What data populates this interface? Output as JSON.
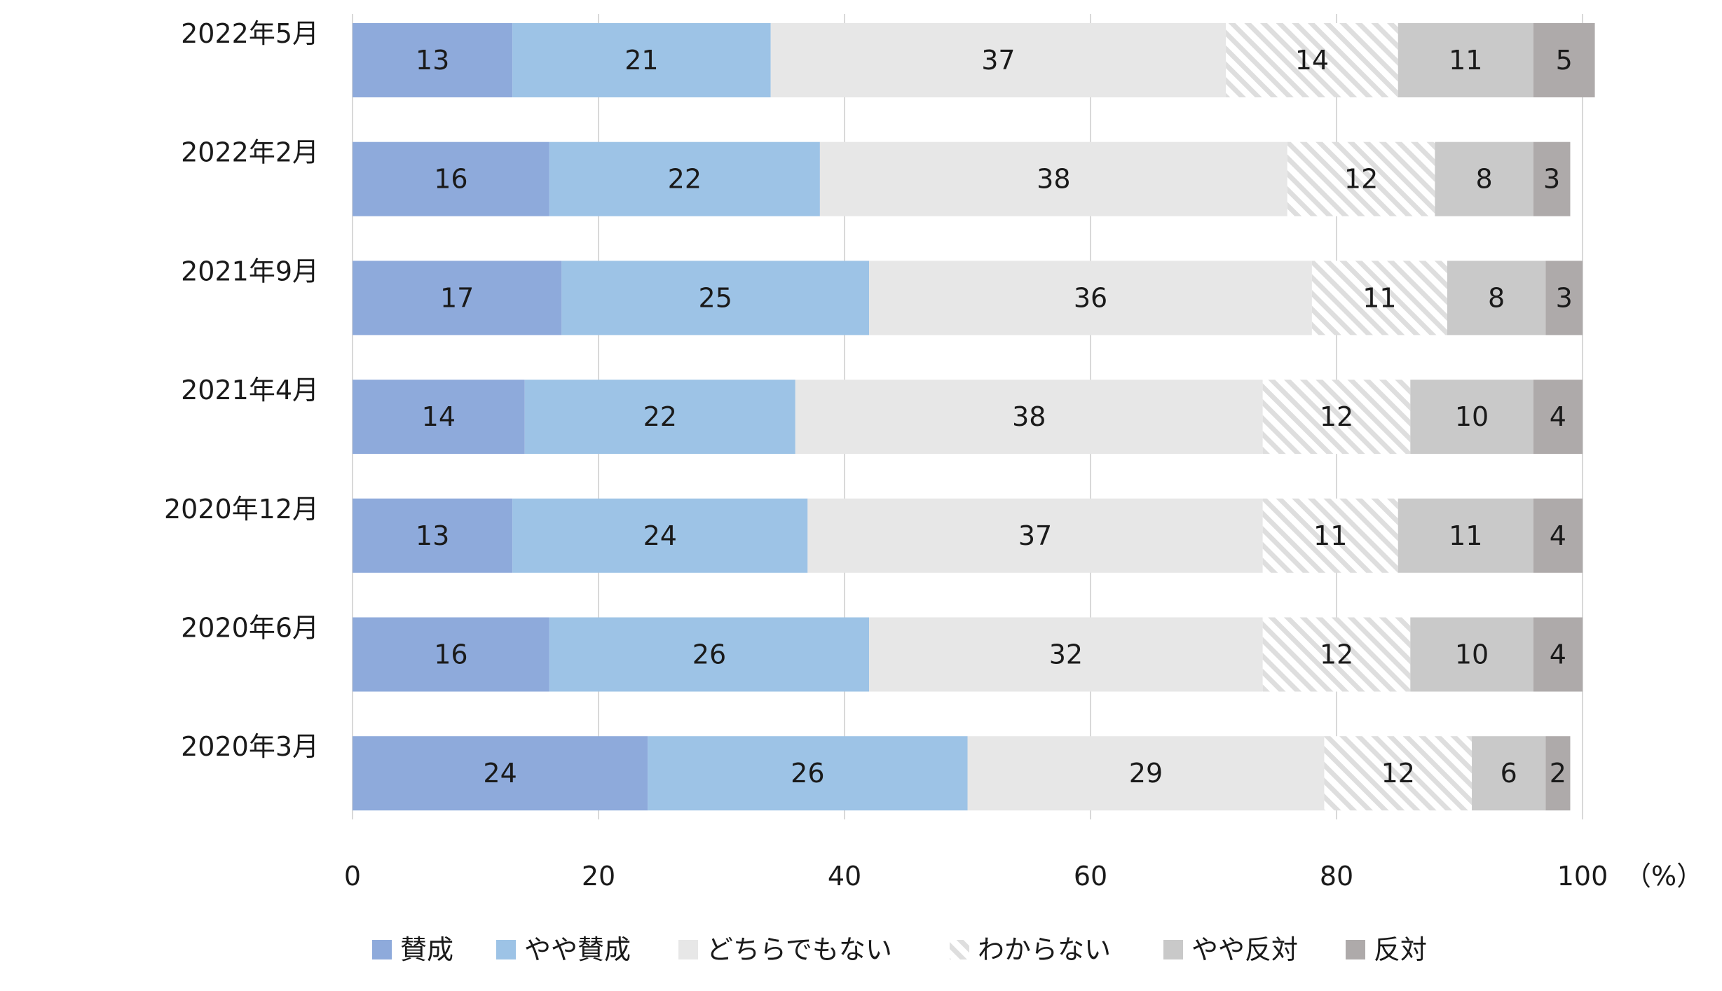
{
  "chart_data": {
    "type": "bar",
    "orientation": "horizontal",
    "stacked": true,
    "categories": [
      "2022年5月",
      "2022年2月",
      "2021年9月",
      "2021年4月",
      "2020年12月",
      "2020年6月",
      "2020年3月"
    ],
    "series": [
      {
        "name": "賛成",
        "values": [
          13,
          16,
          17,
          14,
          13,
          16,
          24
        ],
        "color": "#8eaadb",
        "pattern": "solid"
      },
      {
        "name": "やや賛成",
        "values": [
          21,
          22,
          25,
          22,
          24,
          26,
          26
        ],
        "color": "#9dc3e6",
        "pattern": "solid"
      },
      {
        "name": "どちらでもない",
        "values": [
          37,
          38,
          36,
          38,
          37,
          32,
          29
        ],
        "color": "#e7e7e7",
        "pattern": "solid"
      },
      {
        "name": "わからない",
        "values": [
          14,
          12,
          11,
          12,
          11,
          12,
          12
        ],
        "color": "#e3e3e3",
        "pattern": "hatch"
      },
      {
        "name": "やや反対",
        "values": [
          11,
          8,
          8,
          10,
          11,
          10,
          6
        ],
        "color": "#c9c9c9",
        "pattern": "solid"
      },
      {
        "name": "反対",
        "values": [
          5,
          3,
          3,
          4,
          4,
          4,
          2
        ],
        "color": "#aeaaaa",
        "pattern": "solid"
      }
    ],
    "xlim": [
      0,
      100
    ],
    "xticks": [
      0,
      20,
      40,
      60,
      80,
      100
    ],
    "xunit": "（%）",
    "grid": true,
    "legend_position": "bottom"
  }
}
